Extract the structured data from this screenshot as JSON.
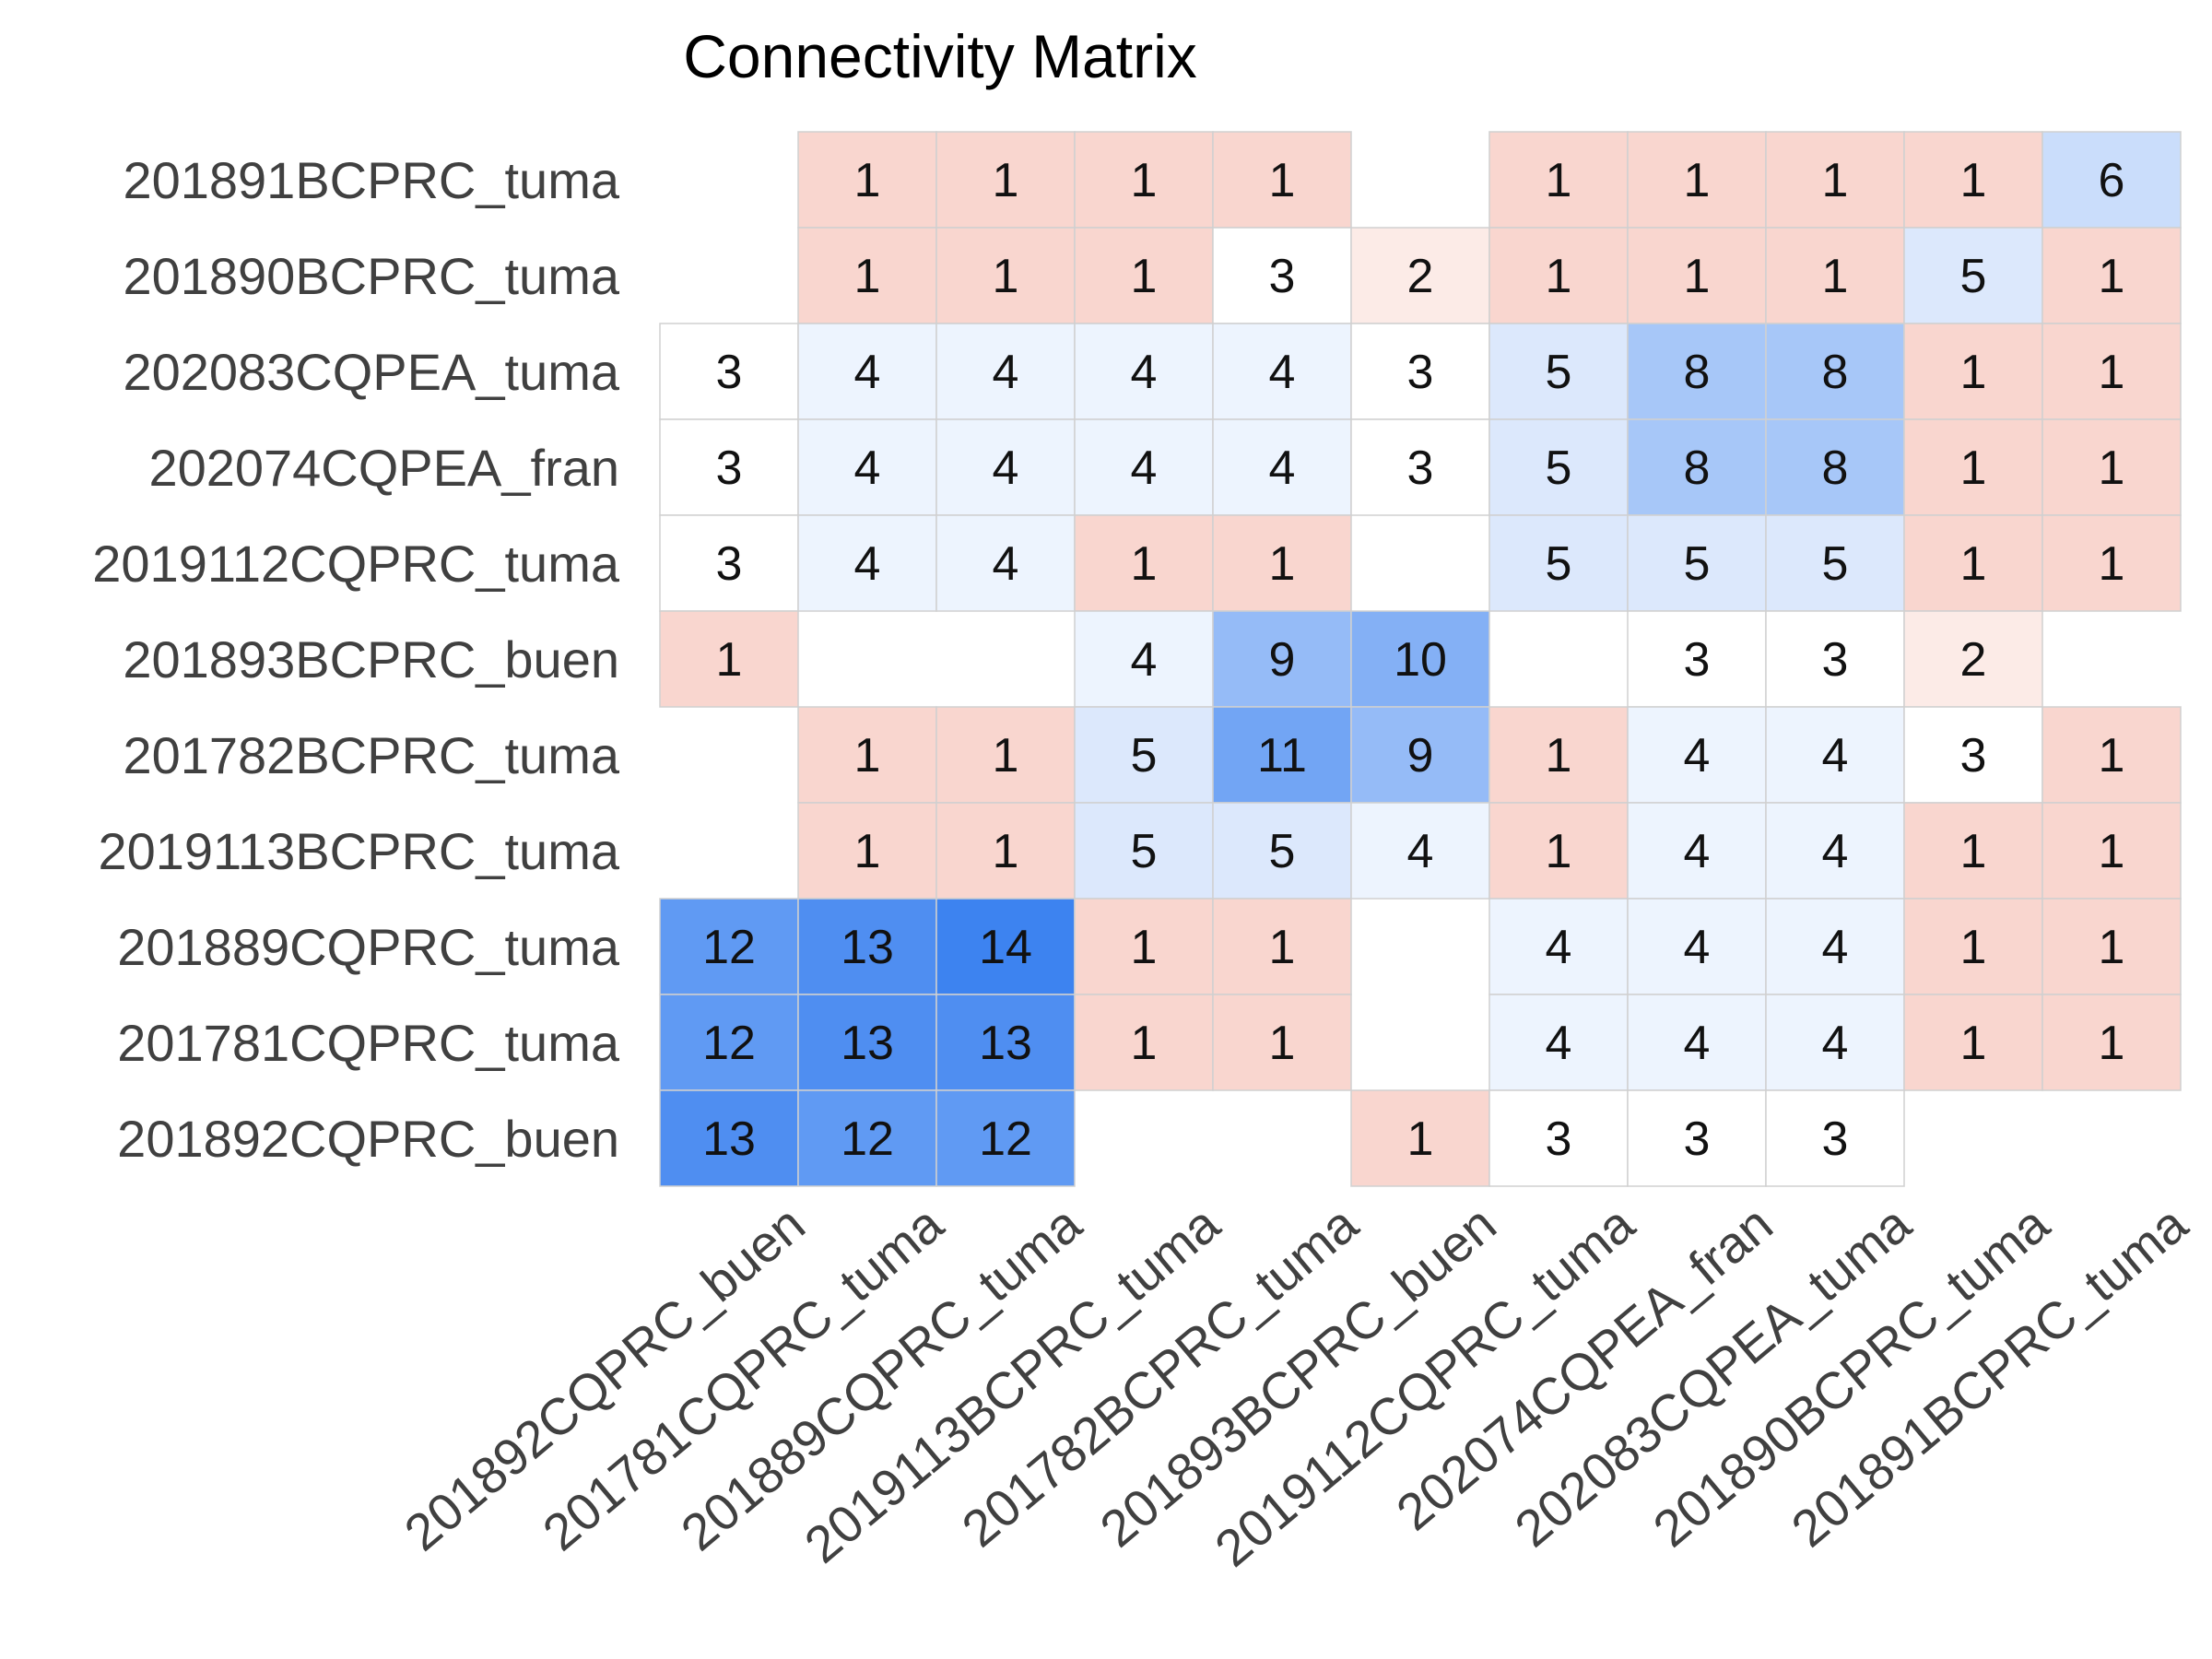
{
  "chart_data": {
    "type": "heatmap",
    "title": "Connectivity Matrix",
    "rows": [
      "201891BCPRC_tuma",
      "201890BCPRC_tuma",
      "202083CQPEA_tuma",
      "202074CQPEA_fran",
      "2019112CQPRC_tuma",
      "201893BCPRC_buen",
      "201782BCPRC_tuma",
      "2019113BCPRC_tuma",
      "201889CQPRC_tuma",
      "201781CQPRC_tuma",
      "201892CQPRC_buen"
    ],
    "columns": [
      "201892CQPRC_buen",
      "201781CQPRC_tuma",
      "201889CQPRC_tuma",
      "2019113BCPRC_tuma",
      "201782BCPRC_tuma",
      "201893BCPRC_buen",
      "2019112CQPRC_tuma",
      "202074CQPEA_fran",
      "202083CQPEA_tuma",
      "201890BCPRC_tuma",
      "201891BCPRC_tuma"
    ],
    "values": [
      [
        null,
        1,
        1,
        1,
        1,
        null,
        1,
        1,
        1,
        1,
        6
      ],
      [
        null,
        1,
        1,
        1,
        3,
        2,
        1,
        1,
        1,
        5,
        1
      ],
      [
        3,
        4,
        4,
        4,
        4,
        3,
        5,
        8,
        8,
        1,
        1
      ],
      [
        3,
        4,
        4,
        4,
        4,
        3,
        5,
        8,
        8,
        1,
        1
      ],
      [
        3,
        4,
        4,
        1,
        1,
        null,
        5,
        5,
        5,
        1,
        1
      ],
      [
        1,
        null,
        null,
        4,
        9,
        10,
        null,
        3,
        3,
        2,
        null
      ],
      [
        null,
        1,
        1,
        5,
        11,
        9,
        1,
        4,
        4,
        3,
        1
      ],
      [
        null,
        1,
        1,
        5,
        5,
        4,
        1,
        4,
        4,
        1,
        1
      ],
      [
        12,
        13,
        14,
        1,
        1,
        null,
        4,
        4,
        4,
        1,
        1
      ],
      [
        12,
        13,
        13,
        1,
        1,
        null,
        4,
        4,
        4,
        1,
        1
      ],
      [
        13,
        12,
        12,
        null,
        null,
        1,
        3,
        3,
        3,
        null,
        null
      ]
    ],
    "colormap": "coolwarm_r",
    "center": 3,
    "vmax": 14,
    "colors": {
      "low": "#f9d6cf",
      "center": "#ffffff",
      "high": "#3d83f0"
    },
    "grid": true,
    "legend": "none"
  }
}
